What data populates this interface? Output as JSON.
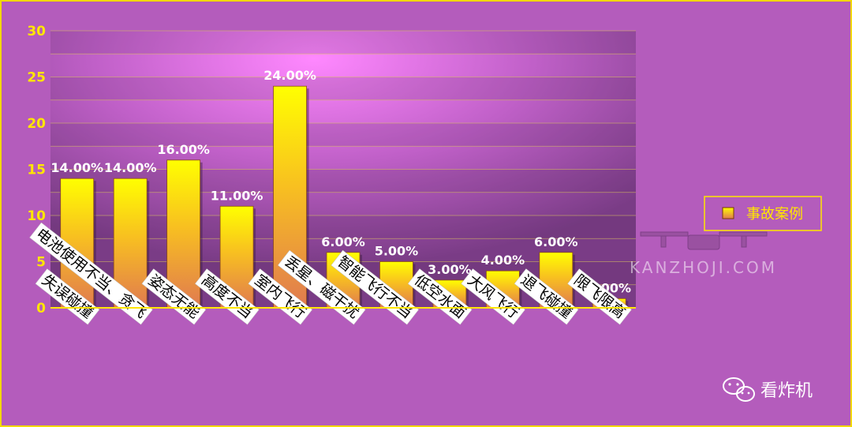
{
  "chart_data": {
    "type": "bar",
    "categories": [
      "失误碰撞",
      "电池使用不当、贪飞",
      "姿态无能",
      "高度不当",
      "室内飞行",
      "丢星、磁干扰",
      "智能飞行不当",
      "低空水面",
      "大风飞行",
      "退飞碰撞",
      "限飞限高"
    ],
    "series": [
      {
        "name": "事故案例",
        "values": [
          14,
          14,
          16,
          11,
          24,
          6,
          5,
          3,
          4,
          6,
          1
        ]
      }
    ],
    "data_labels": [
      "14.00%",
      "14.00%",
      "16.00%",
      "11.00%",
      "24.00%",
      "6.00%",
      "5.00%",
      "3.00%",
      "4.00%",
      "6.00%",
      "1.00%"
    ],
    "y_ticks": [
      "0",
      "5",
      "10",
      "15",
      "20",
      "25",
      "30"
    ],
    "ylim": [
      0,
      30
    ],
    "grid": true,
    "legend_position": "right",
    "colors": {
      "bar_top": "#ffff00",
      "bar_bottom": "#e07a50",
      "axis": "#ffe600",
      "frame": "#f2d800"
    }
  },
  "watermark": {
    "text": "KANZHOJI.COM"
  },
  "brand": {
    "text": "看炸机",
    "icon": "wechat-icon"
  }
}
